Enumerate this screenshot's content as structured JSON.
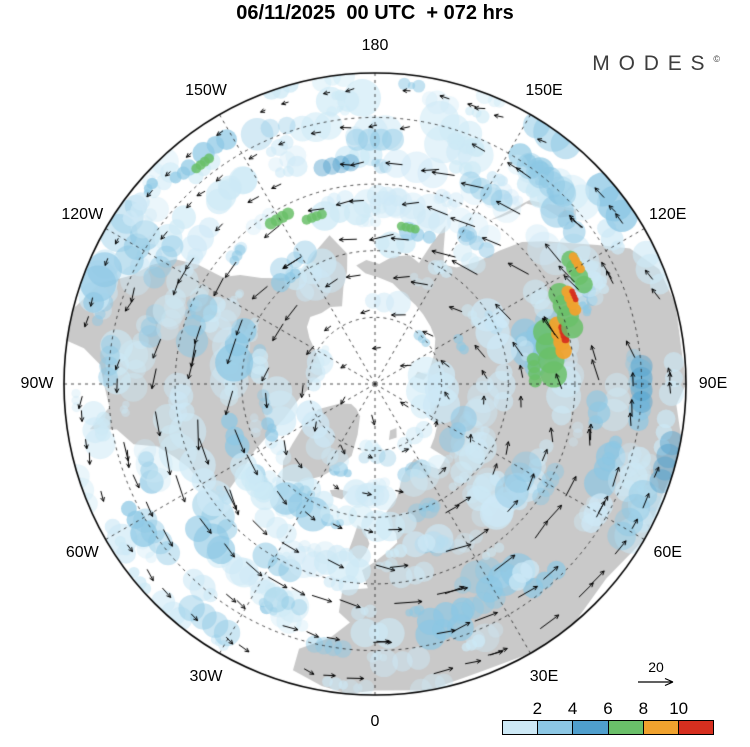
{
  "header": {
    "title": "06/11/2025  00 UTC  + 072 hrs",
    "logo_text": "MODES",
    "logo_mark": "©"
  },
  "vector_legend": {
    "value": "20"
  },
  "colorbar": {
    "tick_labels": [
      "2",
      "4",
      "6",
      "8",
      "10"
    ]
  },
  "chart_data": {
    "type": "heatmap",
    "subtype": "polar-stereographic-weather-map",
    "projection": "Northern Hemisphere polar stereographic, 0 longitude at bottom, 180 at top",
    "valid_time": "06/11/2025 00 UTC",
    "lead_time_hours": 72,
    "field": "shaded scalar magnitude with overlaid wind vectors forming counterclockwise circumpolar circulation",
    "vector_reference_value": 20,
    "colorbar_levels": [
      2,
      4,
      6,
      8,
      10
    ],
    "colorbar_colors": [
      "#cde9f6",
      "#8cc7e4",
      "#4f9fcd",
      "#6abf69",
      "#f0a22e",
      "#d62f1f"
    ],
    "land_color": "#c9c9c9",
    "ocean_color": "#ffffff",
    "lat_edge": 20,
    "graticule_lats": [
      75,
      60,
      45,
      30
    ],
    "meridian_step_deg": 30,
    "lon_labels": [
      {
        "text": "180",
        "lon": 180
      },
      {
        "text": "150W",
        "lon": -150
      },
      {
        "text": "150E",
        "lon": 150
      },
      {
        "text": "120W",
        "lon": -120
      },
      {
        "text": "120E",
        "lon": 120
      },
      {
        "text": "90W",
        "lon": -90
      },
      {
        "text": "90E",
        "lon": 90
      },
      {
        "text": "60W",
        "lon": -60
      },
      {
        "text": "60E",
        "lon": 60
      },
      {
        "text": "30W",
        "lon": -30
      },
      {
        "text": "30E",
        "lon": 30
      },
      {
        "text": "0",
        "lon": 0
      }
    ],
    "noise_seed": 11,
    "texture_blob_count": 260,
    "flow": {
      "direction": "counterclockwise",
      "center_offset": [
        20,
        35
      ],
      "ring_step": 37,
      "arc_spacing": 36,
      "base_speed": 7,
      "jet_amp": 15,
      "jet_radius": 195,
      "jet_width": 85
    },
    "features": [
      {
        "lon": 100,
        "lat": 50,
        "size": 24,
        "level": 3
      },
      {
        "lon": 104,
        "lat": 47,
        "size": 15,
        "level": 4
      },
      {
        "lon": 105,
        "lat": 46,
        "size": 7,
        "level": 5
      },
      {
        "lon": 111,
        "lat": 44,
        "size": 20,
        "level": 3
      },
      {
        "lon": 113,
        "lat": 42,
        "size": 11,
        "level": 4
      },
      {
        "lon": 114,
        "lat": 41,
        "size": 5,
        "level": 5
      },
      {
        "lon": 119,
        "lat": 38,
        "size": 16,
        "level": 3
      },
      {
        "lon": 121,
        "lat": 37,
        "size": 8,
        "level": 4
      },
      {
        "lon": 95,
        "lat": 54,
        "size": 12,
        "level": 3
      },
      {
        "lon": -150,
        "lat": 47,
        "size": 11,
        "level": 3
      },
      {
        "lon": -160,
        "lat": 50,
        "size": 9,
        "level": 3
      },
      {
        "lon": -142,
        "lat": 27,
        "size": 9,
        "level": 3
      },
      {
        "lon": 168,
        "lat": 54,
        "size": 8,
        "level": 3
      },
      {
        "lon": 63,
        "lat": 25,
        "size": 26,
        "level": 1
      },
      {
        "lon": 75,
        "lat": 22,
        "size": 22,
        "level": 2
      },
      {
        "lon": 140,
        "lat": 30,
        "size": 24,
        "level": 1
      },
      {
        "lon": 150,
        "lat": 40,
        "size": 20,
        "level": 1
      },
      {
        "lon": -35,
        "lat": 25,
        "size": 24,
        "level": 1
      },
      {
        "lon": -55,
        "lat": 30,
        "size": 22,
        "level": 1
      },
      {
        "lon": 25,
        "lat": 35,
        "size": 20,
        "level": 1
      },
      {
        "lon": -95,
        "lat": 30,
        "size": 18,
        "level": 1
      },
      {
        "lon": -120,
        "lat": 35,
        "size": 20,
        "level": 1
      },
      {
        "lon": 90,
        "lat": 30,
        "size": 20,
        "level": 2
      },
      {
        "lon": 60,
        "lat": 45,
        "size": 16,
        "level": 1
      },
      {
        "lon": -10,
        "lat": 30,
        "size": 16,
        "level": 1
      },
      {
        "lon": 180,
        "lat": 35,
        "size": 20,
        "level": 1
      },
      {
        "lon": -170,
        "lat": 40,
        "size": 16,
        "level": 2
      }
    ],
    "land_polygons": [
      [
        [
          -168,
          60
        ],
        [
          -166,
          64
        ],
        [
          -162,
          67
        ],
        [
          -157,
          71
        ],
        [
          -150,
          70
        ],
        [
          -143,
          70
        ],
        [
          -136,
          69
        ],
        [
          -130,
          70
        ],
        [
          -125,
          72
        ],
        [
          -118,
          75
        ],
        [
          -110,
          77
        ],
        [
          -101,
          78
        ],
        [
          -93,
          76
        ],
        [
          -86,
          75
        ],
        [
          -80,
          73
        ],
        [
          -75,
          71
        ],
        [
          -69,
          68
        ],
        [
          -65,
          64
        ],
        [
          -61,
          59
        ],
        [
          -56,
          53
        ],
        [
          -53,
          47
        ],
        [
          -60,
          45
        ],
        [
          -66,
          44
        ],
        [
          -70,
          42
        ],
        [
          -74,
          39
        ],
        [
          -76,
          34
        ],
        [
          -80,
          31
        ],
        [
          -81,
          25
        ],
        [
          -85,
          30
        ],
        [
          -90,
          29
        ],
        [
          -94,
          28
        ],
        [
          -97,
          24
        ],
        [
          -98,
          20
        ],
        [
          -104,
          20
        ],
        [
          -110,
          24
        ],
        [
          -114,
          30
        ],
        [
          -118,
          33
        ],
        [
          -122,
          37
        ],
        [
          -124,
          42
        ],
        [
          -125,
          48
        ],
        [
          -129,
          51
        ],
        [
          -133,
          55
        ],
        [
          -138,
          58
        ],
        [
          -144,
          60
        ],
        [
          -151,
          59
        ],
        [
          -157,
          57
        ],
        [
          -163,
          55
        ]
      ],
      [
        [
          -44,
          60
        ],
        [
          -50,
          63
        ],
        [
          -54,
          67
        ],
        [
          -59,
          71
        ],
        [
          -66,
          76
        ],
        [
          -61,
          81
        ],
        [
          -50,
          83
        ],
        [
          -37,
          83
        ],
        [
          -25,
          82
        ],
        [
          -19,
          78
        ],
        [
          -18,
          73
        ],
        [
          -23,
          70
        ],
        [
          -30,
          66
        ],
        [
          -38,
          62
        ]
      ],
      [
        [
          -10,
          21
        ],
        [
          -16,
          23
        ],
        [
          -16,
          28
        ],
        [
          -10,
          32
        ],
        [
          -6,
          36
        ],
        [
          -9,
          38
        ],
        [
          -9,
          43
        ],
        [
          -2,
          44
        ],
        [
          -4,
          48
        ],
        [
          0,
          50
        ],
        [
          4,
          52
        ],
        [
          8,
          54
        ],
        [
          8,
          56
        ],
        [
          6,
          58
        ],
        [
          5,
          61
        ],
        [
          11,
          64
        ],
        [
          16,
          68
        ],
        [
          22,
          70
        ],
        [
          28,
          71
        ],
        [
          31,
          69
        ],
        [
          37,
          66
        ],
        [
          44,
          67
        ],
        [
          41,
          71
        ],
        [
          48,
          72
        ],
        [
          55,
          73
        ],
        [
          63,
          76
        ],
        [
          73,
          77
        ],
        [
          85,
          78
        ],
        [
          97,
          78
        ],
        [
          107,
          77
        ],
        [
          117,
          75
        ],
        [
          127,
          73
        ],
        [
          136,
          72
        ],
        [
          145,
          71
        ],
        [
          153,
          70
        ],
        [
          161,
          69
        ],
        [
          170,
          67
        ],
        [
          178,
          66
        ],
        [
          185,
          65
        ],
        [
          189,
          63
        ],
        [
          184,
          62
        ],
        [
          178,
          63
        ],
        [
          172,
          61
        ],
        [
          165,
          60
        ],
        [
          160,
          61
        ],
        [
          158,
          56
        ],
        [
          156,
          51
        ],
        [
          153,
          56
        ],
        [
          150,
          59
        ],
        [
          145,
          58
        ],
        [
          140,
          54
        ],
        [
          137,
          49
        ],
        [
          134,
          44
        ],
        [
          130,
          40
        ],
        [
          126,
          36
        ],
        [
          122,
          31
        ],
        [
          118,
          25
        ],
        [
          112,
          21
        ],
        [
          105,
          20
        ],
        [
          90,
          20
        ],
        [
          86,
          22
        ],
        [
          80,
          20
        ],
        [
          75,
          20
        ],
        [
          60,
          20
        ],
        [
          50,
          22
        ],
        [
          40,
          20
        ],
        [
          30,
          20
        ],
        [
          20,
          21
        ],
        [
          10,
          20
        ],
        [
          0,
          21
        ],
        [
          -5,
          20
        ]
      ],
      [
        [
          -5,
          50
        ],
        [
          -3,
          52
        ],
        [
          -2,
          54
        ],
        [
          -4,
          57
        ],
        [
          -7,
          58
        ],
        [
          -8,
          55
        ],
        [
          -9,
          52
        ]
      ],
      [
        [
          -23,
          64
        ],
        [
          -19,
          65
        ],
        [
          -14,
          65
        ],
        [
          -16,
          63
        ],
        [
          -21,
          63
        ]
      ],
      [
        [
          130,
          31
        ],
        [
          132,
          34
        ],
        [
          136,
          35
        ],
        [
          140,
          37
        ],
        [
          141,
          40
        ],
        [
          143,
          43
        ],
        [
          145,
          45
        ],
        [
          143,
          42
        ],
        [
          140,
          36
        ],
        [
          135,
          33
        ],
        [
          131,
          30
        ]
      ],
      [
        [
          14,
          77
        ],
        [
          18,
          79
        ],
        [
          26,
          79
        ],
        [
          22,
          77
        ]
      ],
      [
        [
          52,
          70
        ],
        [
          56,
          73
        ],
        [
          60,
          76
        ],
        [
          64,
          77
        ],
        [
          60,
          75
        ],
        [
          56,
          72
        ],
        [
          53,
          70
        ]
      ],
      [
        [
          95,
          79
        ],
        [
          100,
          81
        ],
        [
          106,
          80
        ],
        [
          100,
          78
        ]
      ]
    ]
  }
}
